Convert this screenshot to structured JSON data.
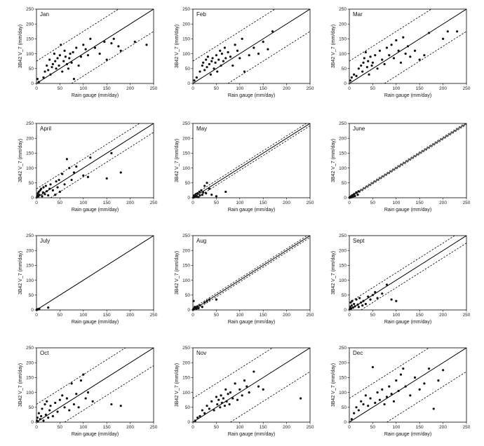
{
  "xlabel": "Rain gauge (mm/day)",
  "ylabel": "3B42 V_7 (mm/day)",
  "xlim": [
    0,
    250
  ],
  "ylim": [
    0,
    250
  ],
  "ticks": [
    0,
    50,
    100,
    150,
    200,
    250
  ],
  "chart_data": [
    {
      "type": "scatter",
      "title": "Jan",
      "band": 75,
      "x": [
        2,
        5,
        15,
        18,
        22,
        25,
        28,
        30,
        33,
        35,
        38,
        40,
        42,
        45,
        48,
        50,
        52,
        55,
        58,
        60,
        62,
        65,
        68,
        70,
        72,
        75,
        78,
        80,
        85,
        90,
        95,
        100,
        105,
        110,
        115,
        125,
        135,
        145,
        150,
        160,
        165,
        175,
        180,
        210,
        235
      ],
      "y": [
        15,
        5,
        20,
        40,
        60,
        45,
        80,
        30,
        55,
        65,
        100,
        75,
        50,
        85,
        60,
        95,
        130,
        40,
        75,
        110,
        90,
        65,
        50,
        85,
        100,
        70,
        105,
        15,
        120,
        60,
        90,
        130,
        115,
        95,
        150,
        120,
        100,
        140,
        80,
        135,
        150,
        125,
        110,
        140,
        130
      ]
    },
    {
      "type": "scatter",
      "title": "Feb",
      "band": 75,
      "x": [
        3,
        8,
        15,
        20,
        22,
        25,
        28,
        30,
        32,
        35,
        38,
        40,
        42,
        45,
        48,
        50,
        52,
        55,
        58,
        60,
        62,
        65,
        68,
        70,
        75,
        80,
        85,
        90,
        95,
        100,
        105,
        110,
        120,
        130,
        140,
        150,
        160,
        170
      ],
      "y": [
        10,
        20,
        40,
        60,
        70,
        45,
        80,
        55,
        90,
        65,
        30,
        75,
        85,
        50,
        70,
        95,
        40,
        80,
        110,
        60,
        100,
        75,
        120,
        85,
        105,
        90,
        60,
        130,
        110,
        85,
        150,
        40,
        95,
        120,
        100,
        140,
        115,
        175
      ]
    },
    {
      "type": "scatter",
      "title": "Mar",
      "band": 75,
      "x": [
        2,
        5,
        10,
        15,
        20,
        25,
        28,
        30,
        32,
        35,
        38,
        40,
        42,
        45,
        48,
        50,
        55,
        60,
        65,
        70,
        75,
        80,
        85,
        90,
        95,
        100,
        105,
        110,
        115,
        120,
        125,
        130,
        140,
        150,
        160,
        170,
        200,
        210,
        230
      ],
      "y": [
        10,
        20,
        30,
        25,
        50,
        60,
        40,
        70,
        85,
        105,
        55,
        75,
        30,
        90,
        60,
        70,
        95,
        50,
        110,
        80,
        65,
        120,
        95,
        130,
        85,
        145,
        110,
        70,
        155,
        100,
        125,
        90,
        110,
        80,
        95,
        170,
        150,
        175,
        175
      ]
    },
    {
      "type": "scatter",
      "title": "April",
      "band": 30,
      "x": [
        1,
        2,
        3,
        4,
        5,
        6,
        8,
        10,
        12,
        14,
        15,
        18,
        20,
        22,
        25,
        28,
        30,
        35,
        40,
        42,
        45,
        48,
        50,
        55,
        60,
        65,
        70,
        75,
        80,
        85,
        100,
        110,
        115,
        150,
        160,
        180
      ],
      "y": [
        2,
        8,
        15,
        5,
        20,
        10,
        25,
        30,
        5,
        18,
        35,
        12,
        40,
        22,
        8,
        30,
        45,
        25,
        10,
        55,
        35,
        60,
        20,
        80,
        45,
        130,
        100,
        60,
        85,
        105,
        75,
        70,
        135,
        65,
        150,
        85
      ]
    },
    {
      "type": "scatter",
      "title": "May",
      "band": 8,
      "x": [
        1,
        2,
        3,
        4,
        5,
        6,
        8,
        10,
        12,
        14,
        15,
        18,
        20,
        22,
        25,
        28,
        30,
        35,
        40,
        50,
        70
      ],
      "y": [
        1,
        5,
        2,
        8,
        3,
        12,
        5,
        15,
        2,
        20,
        8,
        25,
        10,
        18,
        40,
        15,
        50,
        30,
        10,
        5,
        20
      ]
    },
    {
      "type": "scatter",
      "title": "June",
      "band": 4,
      "x": [
        0.5,
        1,
        1.5,
        2,
        3,
        4,
        5,
        6,
        8,
        10,
        12,
        15,
        18,
        20
      ],
      "y": [
        0.5,
        2,
        1,
        3,
        1,
        5,
        2,
        8,
        4,
        12,
        6,
        18,
        10,
        22
      ]
    },
    {
      "type": "scatter",
      "title": "July",
      "band": 0,
      "x": [
        0.5,
        1,
        1.5,
        2,
        3,
        4,
        5,
        6,
        25
      ],
      "y": [
        0.5,
        1,
        2,
        1,
        2,
        3,
        3,
        4,
        8
      ]
    },
    {
      "type": "scatter",
      "title": "Aug",
      "band": 6,
      "x": [
        0.5,
        1,
        1.5,
        2,
        3,
        4,
        5,
        6,
        8,
        10,
        12,
        15,
        20,
        25,
        30,
        35,
        50
      ],
      "y": [
        1,
        2,
        30,
        4,
        3,
        10,
        6,
        8,
        5,
        12,
        6,
        15,
        10,
        25,
        30,
        35,
        35
      ]
    },
    {
      "type": "scatter",
      "title": "Sept",
      "band": 25,
      "x": [
        1,
        2,
        3,
        4,
        5,
        6,
        8,
        10,
        12,
        15,
        18,
        20,
        22,
        25,
        28,
        30,
        35,
        40,
        45,
        50,
        55,
        60,
        70,
        80,
        90,
        100
      ],
      "y": [
        3,
        10,
        25,
        5,
        15,
        30,
        8,
        20,
        12,
        35,
        18,
        10,
        40,
        25,
        15,
        30,
        20,
        45,
        35,
        50,
        60,
        40,
        55,
        85,
        35,
        30
      ]
    },
    {
      "type": "scatter",
      "title": "Oct",
      "band": 60,
      "x": [
        1,
        2,
        3,
        5,
        8,
        10,
        12,
        15,
        18,
        20,
        22,
        25,
        28,
        30,
        35,
        40,
        45,
        50,
        55,
        60,
        65,
        70,
        75,
        80,
        85,
        90,
        95,
        100,
        105,
        110,
        120,
        160,
        180
      ],
      "y": [
        5,
        15,
        2,
        30,
        10,
        20,
        45,
        5,
        60,
        25,
        70,
        15,
        40,
        55,
        20,
        65,
        35,
        75,
        90,
        50,
        80,
        40,
        130,
        60,
        95,
        50,
        140,
        160,
        80,
        100,
        70,
        60,
        55
      ]
    },
    {
      "type": "scatter",
      "title": "Nov",
      "band": 80,
      "x": [
        5,
        10,
        15,
        20,
        25,
        30,
        35,
        40,
        45,
        50,
        52,
        55,
        58,
        60,
        62,
        65,
        68,
        70,
        72,
        75,
        78,
        80,
        85,
        90,
        95,
        100,
        105,
        110,
        115,
        120,
        130,
        140,
        150,
        230
      ],
      "y": [
        5,
        15,
        20,
        40,
        30,
        55,
        45,
        70,
        40,
        85,
        60,
        75,
        50,
        90,
        65,
        80,
        55,
        110,
        70,
        95,
        60,
        100,
        80,
        130,
        75,
        110,
        90,
        140,
        120,
        100,
        170,
        120,
        110,
        80
      ]
    },
    {
      "type": "scatter",
      "title": "Dec",
      "band": 80,
      "x": [
        5,
        10,
        15,
        20,
        25,
        30,
        35,
        40,
        45,
        50,
        55,
        60,
        65,
        70,
        75,
        80,
        85,
        90,
        95,
        100,
        105,
        110,
        115,
        120,
        130,
        140,
        150,
        160,
        170,
        180,
        190,
        200
      ],
      "y": [
        10,
        30,
        50,
        40,
        70,
        60,
        90,
        55,
        80,
        185,
        65,
        100,
        75,
        110,
        60,
        85,
        120,
        95,
        70,
        140,
        105,
        160,
        180,
        120,
        90,
        150,
        110,
        130,
        180,
        45,
        140,
        175
      ]
    }
  ]
}
